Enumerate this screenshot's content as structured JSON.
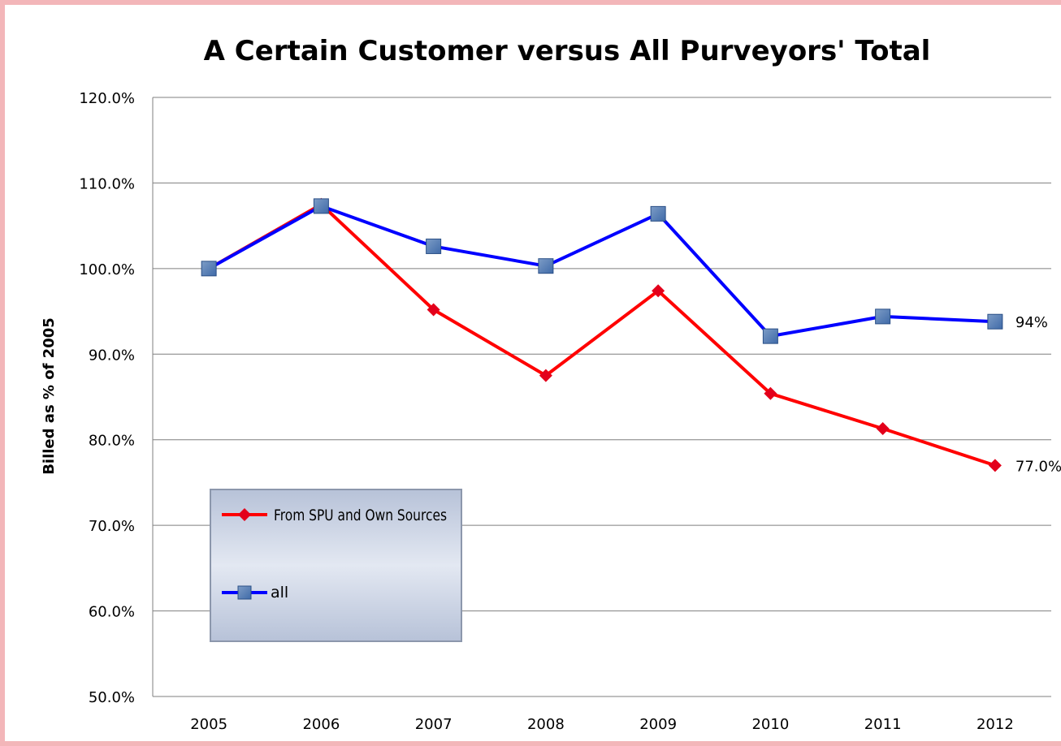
{
  "chart_data": {
    "type": "line",
    "title": "A Certain Customer versus All Purveyors' Total",
    "ylabel": "Billed as % of 2005",
    "xlabel": "",
    "categories": [
      "2005",
      "2006",
      "2007",
      "2008",
      "2009",
      "2010",
      "2011",
      "2012"
    ],
    "ylim": [
      50,
      120
    ],
    "yticks": [
      50,
      60,
      70,
      80,
      90,
      100,
      110,
      120
    ],
    "ytick_labels": [
      "50.0%",
      "60.0%",
      "70.0%",
      "80.0%",
      "90.0%",
      "100.0%",
      "110.0%",
      "120.0%"
    ],
    "grid": true,
    "legend_position": "bottom-left",
    "series": [
      {
        "name": "From SPU and Own Sources",
        "color": "#ff0000",
        "marker": "diamond",
        "values": [
          100.0,
          107.5,
          95.2,
          87.5,
          97.4,
          85.4,
          81.3,
          77.0
        ],
        "end_label": "77.0%"
      },
      {
        "name": "all",
        "color": "#0000ff",
        "marker": "square",
        "values": [
          100.0,
          107.3,
          102.6,
          100.3,
          106.4,
          92.1,
          94.4,
          93.8
        ],
        "end_label": "94%"
      }
    ]
  }
}
